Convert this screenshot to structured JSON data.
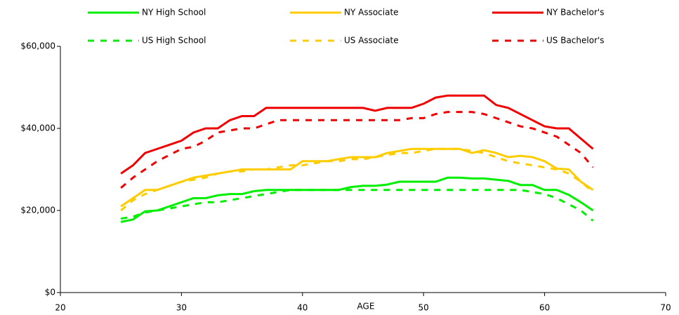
{
  "chart_data": {
    "type": "line",
    "x_label": "AGE",
    "x": [
      25,
      26,
      27,
      28,
      29,
      30,
      31,
      32,
      33,
      34,
      35,
      36,
      37,
      38,
      39,
      40,
      41,
      42,
      43,
      44,
      45,
      46,
      47,
      48,
      49,
      50,
      51,
      52,
      53,
      54,
      55,
      56,
      57,
      58,
      59,
      60,
      61,
      62,
      63,
      64
    ],
    "xlim": [
      20,
      70
    ],
    "xticks": [
      20,
      30,
      40,
      50,
      60,
      70
    ],
    "ylim": [
      0,
      60000
    ],
    "yticks": [
      {
        "value": 0,
        "label": "$0"
      },
      {
        "value": 20000,
        "label": "$20,000"
      },
      {
        "value": 40000,
        "label": "$40,000"
      },
      {
        "value": 60000,
        "label": "$60,000"
      }
    ],
    "series": [
      {
        "name": "NY High School",
        "color": "#00ee00",
        "line_style": "solid",
        "values": [
          17200,
          17800,
          19800,
          20000,
          21000,
          22000,
          23000,
          23000,
          23700,
          24000,
          24000,
          24700,
          25000,
          25000,
          25000,
          25000,
          25000,
          25000,
          25000,
          25700,
          26000,
          26000,
          26300,
          27000,
          27000,
          27000,
          27000,
          28000,
          28000,
          27800,
          27800,
          27500,
          27200,
          26200,
          26200,
          25000,
          25000,
          23800,
          22000,
          20000
        ]
      },
      {
        "name": "US High School",
        "color": "#00ee00",
        "line_style": "dashed",
        "values": [
          18000,
          18500,
          19500,
          20000,
          20500,
          21000,
          21500,
          22000,
          22000,
          22500,
          23000,
          23500,
          24000,
          24500,
          25000,
          25000,
          25000,
          25000,
          25000,
          25000,
          25000,
          25000,
          25000,
          25000,
          25000,
          25000,
          25000,
          25000,
          25000,
          25000,
          25000,
          25000,
          25000,
          25000,
          24500,
          24000,
          23000,
          21500,
          20000,
          17500
        ]
      },
      {
        "name": "NY Associate",
        "color": "#ffcc00",
        "line_style": "solid",
        "values": [
          21000,
          23000,
          25000,
          25000,
          26000,
          27000,
          28000,
          28500,
          29000,
          29500,
          30000,
          30000,
          30000,
          30000,
          30000,
          32000,
          32000,
          32000,
          32500,
          33000,
          33000,
          33000,
          34000,
          34500,
          35000,
          35000,
          35000,
          35000,
          35000,
          34000,
          34700,
          34000,
          33000,
          33300,
          33000,
          32000,
          30200,
          30000,
          27000,
          25000
        ]
      },
      {
        "name": "US Associate",
        "color": "#ffcc00",
        "line_style": "dashed",
        "values": [
          20000,
          22500,
          24000,
          25000,
          26000,
          27000,
          27500,
          28000,
          29000,
          29500,
          29500,
          30000,
          30000,
          30500,
          31000,
          31000,
          31500,
          32000,
          32000,
          32500,
          32500,
          33000,
          33500,
          34000,
          34000,
          34500,
          35000,
          35000,
          35000,
          34500,
          34000,
          33000,
          32000,
          31500,
          31000,
          30500,
          30000,
          29000,
          27000,
          24500
        ]
      },
      {
        "name": "NY Bachelor's",
        "color": "#ee0000",
        "line_style": "solid",
        "values": [
          29000,
          31000,
          34000,
          35000,
          36000,
          37000,
          39000,
          40000,
          40000,
          42000,
          43000,
          43000,
          45000,
          45000,
          45000,
          45000,
          45000,
          45000,
          45000,
          45000,
          45000,
          44300,
          45000,
          45000,
          45000,
          46000,
          47500,
          48000,
          48000,
          48000,
          48000,
          45700,
          45000,
          43500,
          42000,
          40500,
          40000,
          40000,
          37500,
          35000
        ]
      },
      {
        "name": "US Bachelor's",
        "color": "#ee0000",
        "line_style": "dashed",
        "values": [
          25500,
          28000,
          30000,
          32000,
          33500,
          35000,
          35500,
          37000,
          39000,
          39500,
          40000,
          40000,
          41000,
          42000,
          42000,
          42000,
          42000,
          42000,
          42000,
          42000,
          42000,
          42000,
          42000,
          42000,
          42500,
          42500,
          43500,
          44000,
          44000,
          44000,
          43500,
          42500,
          41500,
          40500,
          40000,
          39000,
          38000,
          36000,
          34000,
          30500
        ]
      }
    ]
  }
}
